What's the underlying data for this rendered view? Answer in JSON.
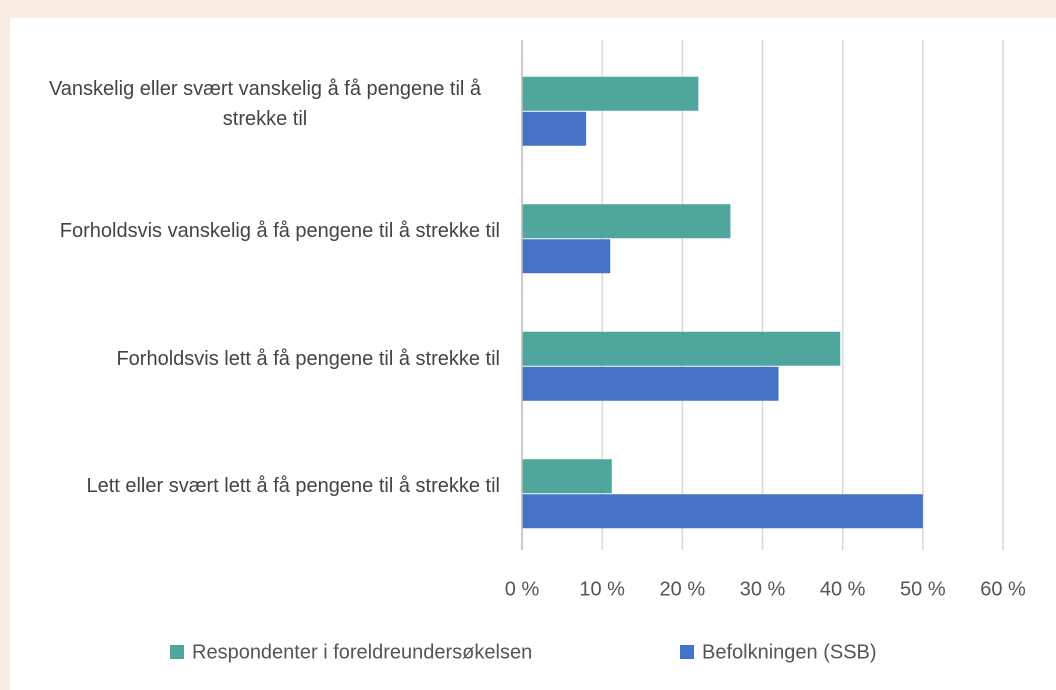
{
  "chart_data": {
    "type": "bar",
    "orientation": "horizontal",
    "categories": [
      "Vanskelig eller svært vanskelig å få pengene til å strekke til",
      "Forholdsvis vanskelig å få pengene til å strekke til",
      "Forholdsvis lett å få pengene til å strekke til",
      "Lett eller svært lett å få pengene til å strekke til"
    ],
    "series": [
      {
        "name": "Respondenter i foreldreundersøkelsen",
        "color": "#4ea69c",
        "values": [
          22,
          26,
          39.7,
          11.2
        ]
      },
      {
        "name": "Befolkningen (SSB)",
        "color": "#4472c4",
        "values": [
          8,
          11,
          32,
          50
        ]
      }
    ],
    "xlim": [
      0,
      60
    ],
    "xticks": [
      {
        "value": 0,
        "label": "0 %"
      },
      {
        "value": 10,
        "label": "10 %"
      },
      {
        "value": 20,
        "label": "20 %"
      },
      {
        "value": 30,
        "label": "30 %"
      },
      {
        "value": 40,
        "label": "40 %"
      },
      {
        "value": 50,
        "label": "50 %"
      },
      {
        "value": 60,
        "label": "60 %"
      }
    ],
    "grid": true,
    "legend": "bottom"
  }
}
